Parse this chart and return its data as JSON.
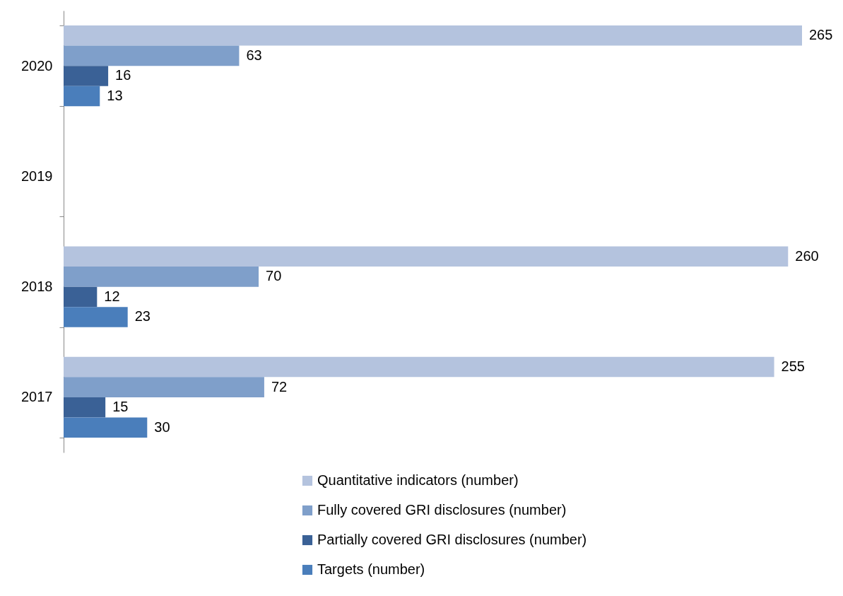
{
  "chart_data": {
    "type": "bar",
    "orientation": "horizontal",
    "categories": [
      "2020",
      "2019",
      "2018",
      "2017"
    ],
    "series": [
      {
        "name": "Quantitative indicators (number)",
        "color": "#b4c3de",
        "values": [
          265,
          null,
          260,
          255
        ]
      },
      {
        "name": "Fully covered GRI disclosures (number)",
        "color": "#7f9fca",
        "values": [
          63,
          null,
          70,
          72
        ]
      },
      {
        "name": "Partially covered GRI disclosures (number)",
        "color": "#3a6196",
        "values": [
          16,
          null,
          12,
          15
        ]
      },
      {
        "name": "Targets (number)",
        "color": "#4a7ebb",
        "values": [
          13,
          null,
          23,
          30
        ]
      }
    ],
    "data_labels": true,
    "legend": "bottom"
  }
}
